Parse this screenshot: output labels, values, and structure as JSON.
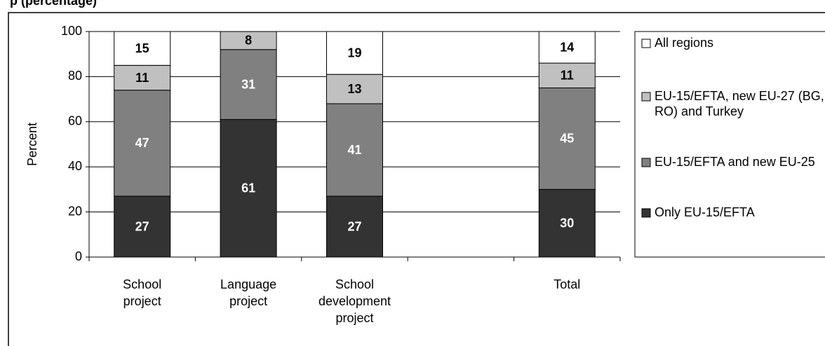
{
  "chart_data": {
    "type": "stacked-bar",
    "title": "p (percentage)",
    "ylabel": "Percent",
    "categories": [
      "School project",
      "Language project",
      "School development project",
      null,
      "Total"
    ],
    "series": [
      {
        "name": "Only EU-15/EFTA",
        "color": "#333333",
        "values": [
          27,
          61,
          27,
          null,
          30
        ]
      },
      {
        "name": "EU-15/EFTA and new EU-25",
        "color": "#808080",
        "values": [
          47,
          31,
          41,
          null,
          45
        ]
      },
      {
        "name": "EU-15/EFTA, new EU-27 (BG, RO) and Turkey",
        "color": "#c0c0c0",
        "values": [
          11,
          8,
          13,
          null,
          11
        ]
      },
      {
        "name": "All regions",
        "color": "#ffffff",
        "values": [
          15,
          null,
          19,
          null,
          14
        ]
      }
    ],
    "ylim": [
      0,
      100
    ],
    "yticks": [
      0,
      20,
      40,
      60,
      80,
      100
    ],
    "grid": true,
    "legend": "right"
  }
}
